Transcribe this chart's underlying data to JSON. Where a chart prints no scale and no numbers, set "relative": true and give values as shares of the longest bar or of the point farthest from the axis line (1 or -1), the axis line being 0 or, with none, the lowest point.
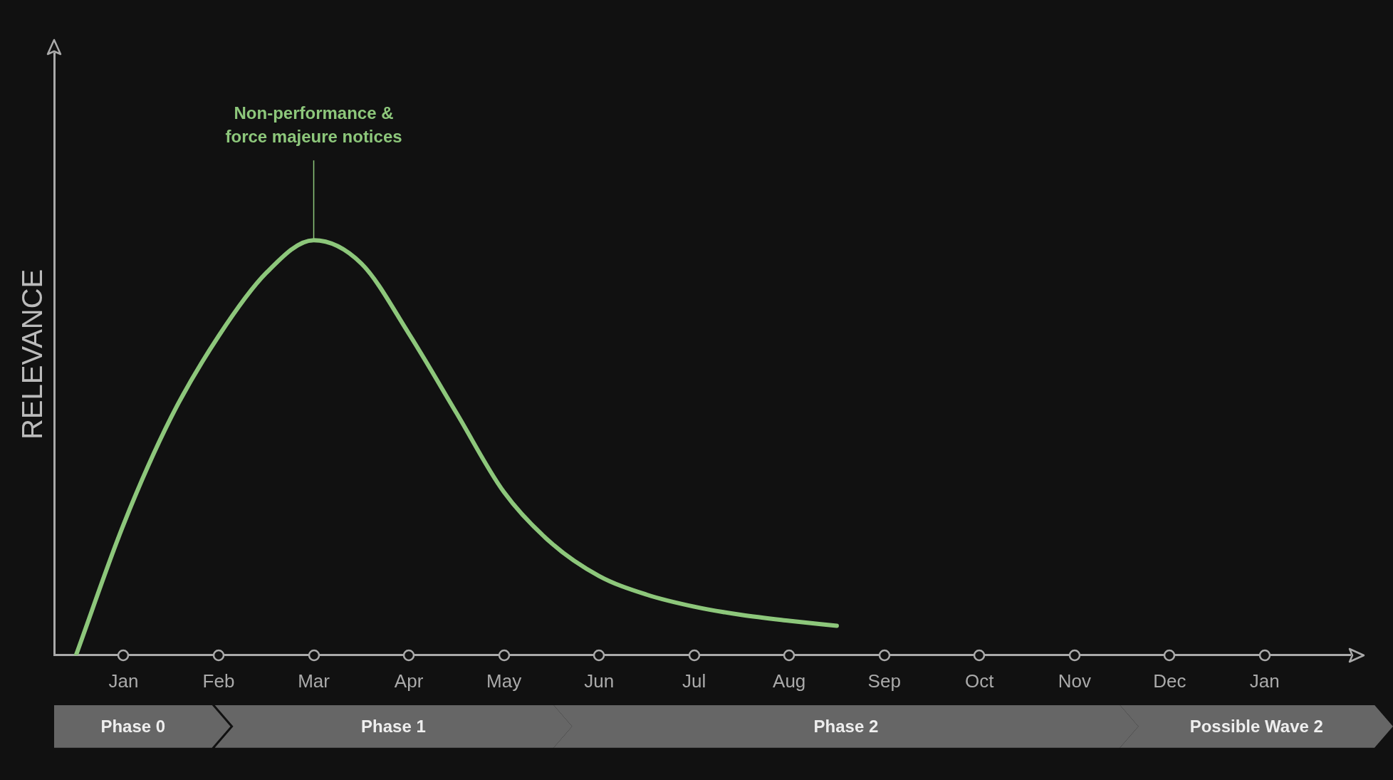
{
  "chart_data": {
    "type": "line",
    "relative": true,
    "ylabel": "RELEVANCE",
    "categories": [
      null,
      "Jan",
      null,
      "Feb",
      null,
      "Mar",
      null,
      "Apr",
      null,
      "May",
      null,
      "Jun",
      null,
      "Jul",
      null,
      "Aug",
      null,
      "Sep",
      null,
      "Oct",
      null,
      "Nov",
      null,
      "Dec",
      null,
      "Jan"
    ],
    "series": [
      {
        "color": "#8dc77b",
        "values": [
          0,
          0.315,
          0.573,
          0.769,
          0.921,
          1.0,
          0.944,
          0.775,
          0.584,
          0.393,
          0.27,
          0.191,
          0.146,
          0.117,
          0.097,
          0.083,
          0.071,
          null,
          null,
          null,
          null,
          null,
          null,
          null,
          null,
          null
        ]
      }
    ],
    "annotations": [
      {
        "text": "Non-performance & force majeure notices",
        "x": "Mar",
        "y": 1
      },
      "Phase 0",
      "Phase 1",
      "Phase 2",
      "Possible Wave 2"
    ],
    "grid": false,
    "legend": false,
    "marker": "none",
    "line_style": "solid"
  }
}
